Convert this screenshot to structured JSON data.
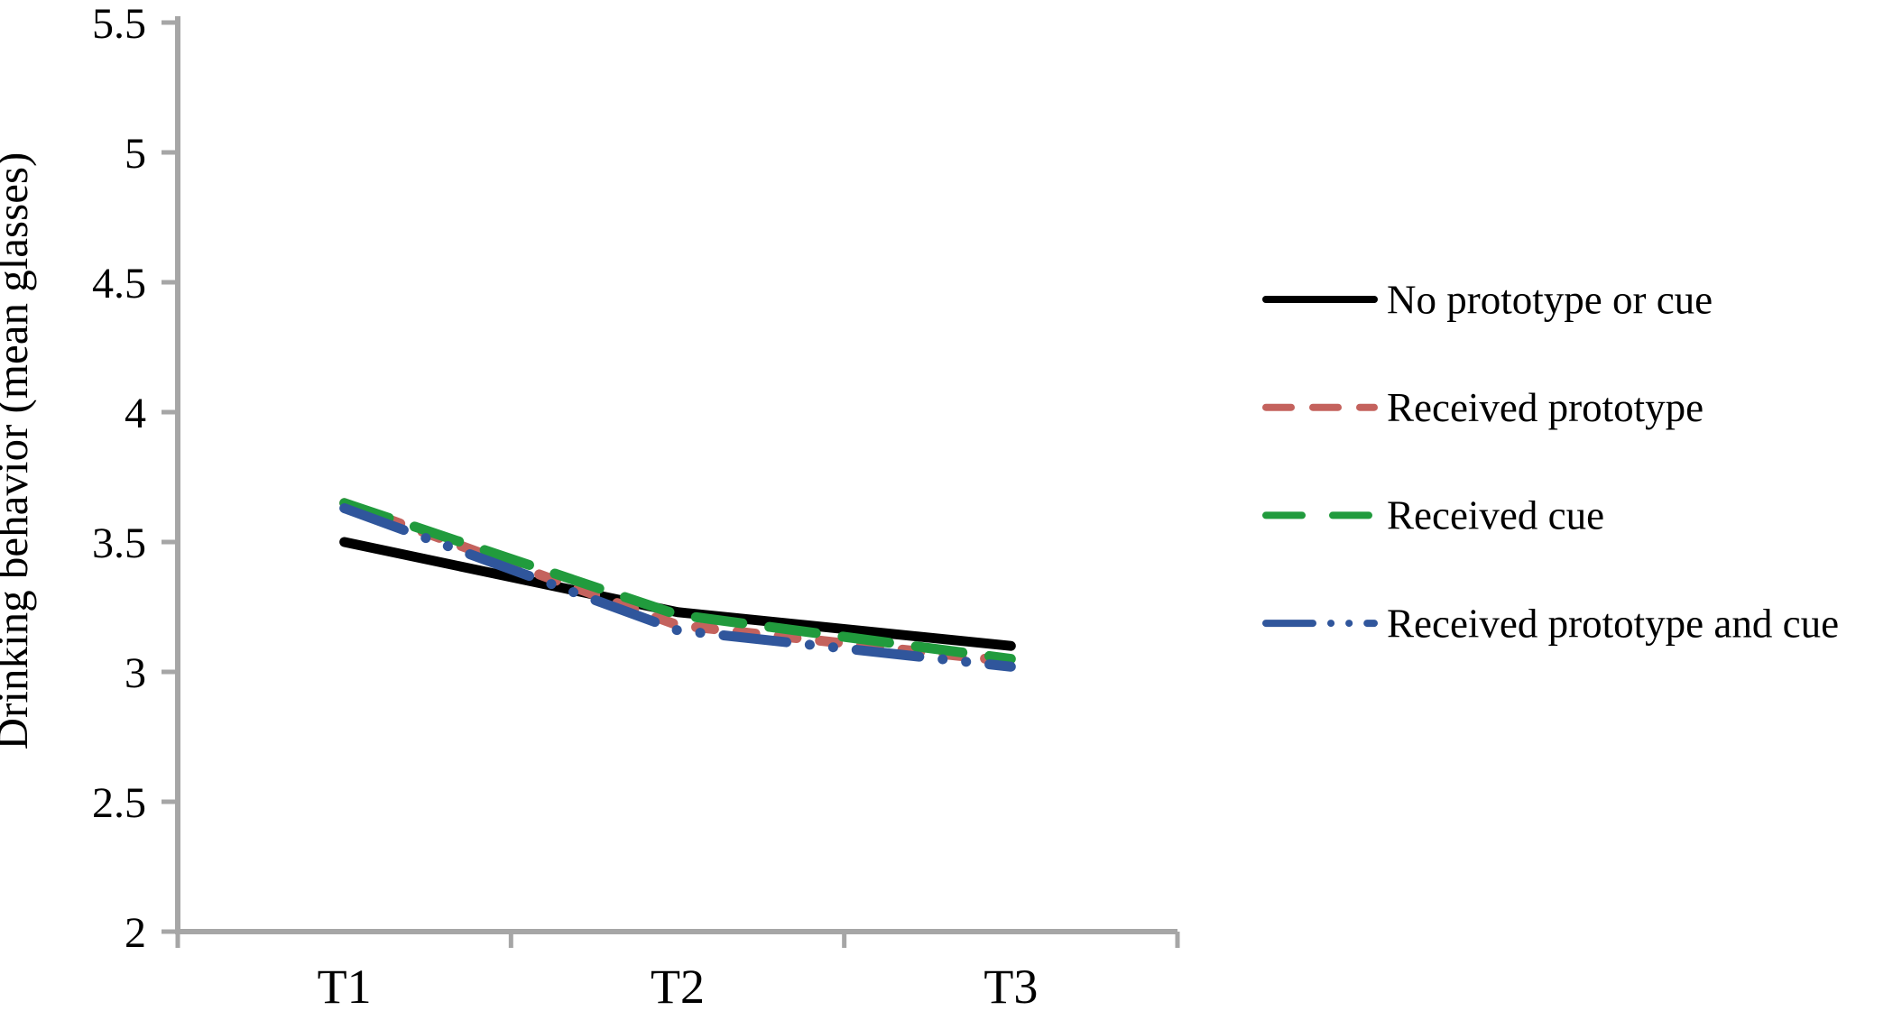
{
  "chart_data": {
    "type": "line",
    "title": "",
    "xlabel": "",
    "ylabel": "Drinking behavior (mean glasses)",
    "categories": [
      "T1",
      "T2",
      "T3"
    ],
    "series": [
      {
        "name": "No prototype or cue",
        "values": [
          3.5,
          3.23,
          3.1
        ],
        "color": "#000000",
        "dash": "solid"
      },
      {
        "name": "Received prototype",
        "values": [
          3.65,
          3.18,
          3.04
        ],
        "color": "#C4625D",
        "dash": "dash"
      },
      {
        "name": "Received cue",
        "values": [
          3.65,
          3.22,
          3.05
        ],
        "color": "#219B3D",
        "dash": "long-dash"
      },
      {
        "name": "Received prototype and cue",
        "values": [
          3.63,
          3.16,
          3.02
        ],
        "color": "#30569C",
        "dash": "long-dash-dot-dot"
      }
    ],
    "ylim": [
      2,
      5.5
    ],
    "ytick_interval": 0.5,
    "ytick_labels": [
      "2",
      "2.5",
      "3",
      "3.5",
      "4",
      "4.5",
      "5",
      "5.5"
    ],
    "grid": false,
    "legend_position": "right-middle",
    "axis_color": "#A6A6A6",
    "text_color": "#000000",
    "background_color": "#FFFFFF"
  }
}
